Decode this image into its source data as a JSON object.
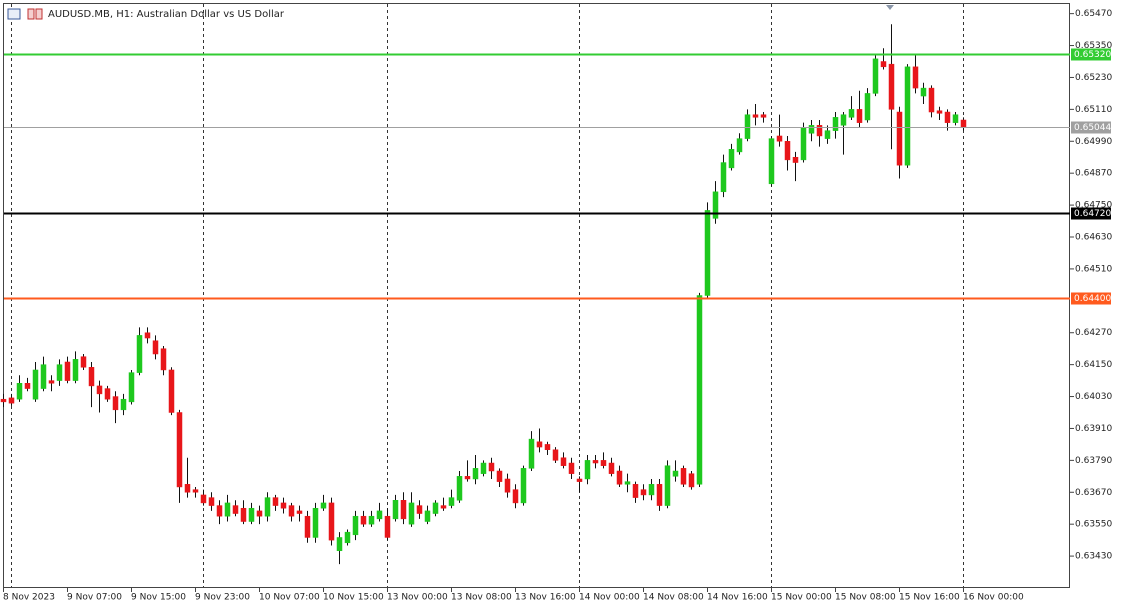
{
  "chart_data": {
    "type": "candlestick",
    "title": "AUDUSD.MB, H1:  Australian Dollar vs US Dollar",
    "up_color": "#1ec81e",
    "down_color": "#e8161a",
    "wick_color": "#111111",
    "categories": [
      "8 Nov 2023",
      null,
      null,
      null,
      null,
      null,
      null,
      null,
      "9 Nov 07:00",
      null,
      null,
      null,
      null,
      null,
      null,
      null,
      "9 Nov 15:00",
      null,
      null,
      null,
      null,
      null,
      null,
      null,
      "9 Nov 23:00",
      null,
      null,
      null,
      null,
      null,
      null,
      null,
      "10 Nov 07:00",
      null,
      null,
      null,
      null,
      null,
      null,
      null,
      "10 Nov 15:00",
      null,
      null,
      null,
      null,
      null,
      null,
      null,
      "13 Nov 00:00",
      null,
      null,
      null,
      null,
      null,
      null,
      null,
      "13 Nov 08:00",
      null,
      null,
      null,
      null,
      null,
      null,
      null,
      "13 Nov 16:00",
      null,
      null,
      null,
      null,
      null,
      null,
      null,
      "14 Nov 00:00",
      null,
      null,
      null,
      null,
      null,
      null,
      null,
      "14 Nov 08:00",
      null,
      null,
      null,
      null,
      null,
      null,
      null,
      "14 Nov 16:00",
      null,
      null,
      null,
      null,
      null,
      null,
      null,
      "15 Nov 00:00",
      null,
      null,
      null,
      null,
      null,
      null,
      null,
      "15 Nov 08:00",
      null,
      null,
      null,
      null,
      null,
      null,
      null,
      "15 Nov 16:00",
      null,
      null,
      null,
      null,
      null,
      null,
      null,
      "16 Nov 00:00"
    ],
    "open": [
      0.6402,
      0.64025,
      0.6402,
      0.6408,
      0.6402,
      0.6406,
      0.6409,
      0.6409,
      0.6416,
      0.6409,
      0.6418,
      0.6414,
      0.6407,
      0.6406,
      0.6403,
      0.6398,
      0.6401,
      0.6412,
      0.6427,
      0.6424,
      0.6421,
      0.6413,
      0.6397,
      0.637,
      0.6368,
      0.6366,
      0.6365,
      0.6362,
      0.6358,
      0.6362,
      0.6361,
      0.6356,
      0.636,
      0.6358,
      0.6365,
      0.6363,
      0.6362,
      0.636,
      0.6358,
      0.635,
      0.6361,
      0.6363,
      0.6345,
      0.6348,
      0.6351,
      0.6358,
      0.6355,
      0.6357,
      0.6358,
      0.6357,
      0.6364,
      0.6355,
      0.6362,
      0.6356,
      0.6359,
      0.6362,
      0.6362,
      0.6364,
      0.6373,
      0.6372,
      0.6374,
      0.6378,
      0.6375,
      0.6372,
      0.6368,
      0.6363,
      0.6376,
      0.6386,
      0.6385,
      0.6383,
      0.638,
      0.6378,
      0.6372,
      0.6372,
      0.6379,
      0.6379,
      0.6378,
      0.6375,
      0.637,
      0.637,
      0.6368,
      0.6366,
      0.637,
      0.6362,
      0.6373,
      0.6376,
      0.6374,
      0.637,
      0.6441,
      0.647,
      0.648,
      0.6489,
      0.6495,
      0.65,
      0.6509,
      0.6509,
      0.6483,
      0.6501,
      0.6499,
      0.6493,
      0.6492,
      0.6502,
      0.6505,
      0.65,
      0.6503,
      0.6505,
      0.6508,
      0.6511,
      0.6507,
      0.6517,
      0.6529,
      0.6528,
      0.651,
      0.649,
      0.6527,
      0.6516,
      0.6519,
      0.65105,
      0.651,
      0.6506,
      0.6507
    ],
    "high": [
      0.6404,
      0.6404,
      0.6411,
      0.641,
      0.6416,
      0.6418,
      0.6411,
      0.6417,
      0.6418,
      0.642,
      0.6419,
      0.6416,
      0.6409,
      0.6407,
      0.6405,
      0.6404,
      0.6413,
      0.6429,
      0.6429,
      0.6426,
      0.6422,
      0.6414,
      0.6398,
      0.638,
      0.6369,
      0.6368,
      0.6367,
      0.6364,
      0.6366,
      0.6364,
      0.6364,
      0.6363,
      0.6362,
      0.6367,
      0.6366,
      0.6365,
      0.6363,
      0.6362,
      0.636,
      0.6363,
      0.6366,
      0.6365,
      0.6352,
      0.6353,
      0.636,
      0.636,
      0.636,
      0.6363,
      0.6361,
      0.6366,
      0.6367,
      0.6367,
      0.6364,
      0.6362,
      0.6364,
      0.6365,
      0.6368,
      0.6375,
      0.6379,
      0.6381,
      0.6379,
      0.638,
      0.6376,
      0.6374,
      0.637,
      0.6377,
      0.639,
      0.6391,
      0.6386,
      0.6384,
      0.6382,
      0.638,
      0.6373,
      0.6381,
      0.6381,
      0.6382,
      0.638,
      0.6377,
      0.6374,
      0.6371,
      0.637,
      0.6372,
      0.6372,
      0.6379,
      0.6379,
      0.6377,
      0.6375,
      0.6442,
      0.6476,
      0.6484,
      0.6494,
      0.6498,
      0.6502,
      0.6511,
      0.6513,
      0.651,
      0.6501,
      0.6509,
      0.6501,
      0.6495,
      0.6506,
      0.6507,
      0.6507,
      0.6505,
      0.651,
      0.651,
      0.6516,
      0.6518,
      0.6519,
      0.6532,
      0.6534,
      0.6543,
      0.6512,
      0.6528,
      0.6532,
      0.6521,
      0.652,
      0.6512,
      0.6511,
      0.651,
      0.6508
    ],
    "low": [
      0.6399,
      0.63995,
      0.6401,
      0.6405,
      0.6401,
      0.6405,
      0.6405,
      0.6407,
      0.6408,
      0.6408,
      0.6413,
      0.6399,
      0.6397,
      0.6401,
      0.6393,
      0.6396,
      0.64,
      0.6411,
      0.6423,
      0.6417,
      0.6411,
      0.6396,
      0.6363,
      0.6365,
      0.6365,
      0.6362,
      0.636,
      0.6355,
      0.6356,
      0.6358,
      0.6355,
      0.6355,
      0.6355,
      0.6356,
      0.636,
      0.6359,
      0.6356,
      0.6356,
      0.6348,
      0.6348,
      0.636,
      0.6347,
      0.634,
      0.6347,
      0.6349,
      0.6354,
      0.6354,
      0.6356,
      0.6349,
      0.6356,
      0.6355,
      0.6354,
      0.6357,
      0.6355,
      0.6358,
      0.636,
      0.6361,
      0.6363,
      0.6371,
      0.637,
      0.6373,
      0.6372,
      0.6369,
      0.6365,
      0.6361,
      0.6362,
      0.6375,
      0.6382,
      0.6381,
      0.6378,
      0.6376,
      0.6372,
      0.6367,
      0.637,
      0.6376,
      0.6376,
      0.6373,
      0.6369,
      0.6367,
      0.6363,
      0.6364,
      0.6364,
      0.636,
      0.6361,
      0.6371,
      0.6369,
      0.6368,
      0.6369,
      0.644,
      0.6468,
      0.6478,
      0.6488,
      0.6494,
      0.6499,
      0.6505,
      0.6506,
      0.6482,
      0.6497,
      0.6488,
      0.6484,
      0.6491,
      0.6499,
      0.6497,
      0.6498,
      0.65,
      0.6494,
      0.6507,
      0.6504,
      0.6506,
      0.6516,
      0.6526,
      0.6496,
      0.6485,
      0.6489,
      0.6517,
      0.6513,
      0.6508,
      0.6507,
      0.6503,
      0.6505,
      0.6503
    ],
    "close": [
      0.6401,
      0.64005,
      0.6408,
      0.6406,
      0.6413,
      0.6415,
      0.6408,
      0.6415,
      0.6409,
      0.6417,
      0.6414,
      0.6407,
      0.6404,
      0.6402,
      0.6398,
      0.6402,
      0.6412,
      0.6426,
      0.6425,
      0.6419,
      0.6413,
      0.6397,
      0.6369,
      0.6367,
      0.6367,
      0.6363,
      0.6362,
      0.6358,
      0.6363,
      0.6359,
      0.6356,
      0.6361,
      0.6358,
      0.6365,
      0.6362,
      0.6361,
      0.6358,
      0.6359,
      0.635,
      0.6361,
      0.6363,
      0.6349,
      0.635,
      0.6352,
      0.6358,
      0.6355,
      0.6358,
      0.636,
      0.635,
      0.6364,
      0.6357,
      0.6363,
      0.6359,
      0.636,
      0.6363,
      0.6361,
      0.6365,
      0.6373,
      0.6372,
      0.6376,
      0.6378,
      0.6375,
      0.6371,
      0.6367,
      0.6363,
      0.6376,
      0.6387,
      0.6384,
      0.6383,
      0.6379,
      0.6377,
      0.6374,
      0.6371,
      0.6379,
      0.6378,
      0.6377,
      0.6374,
      0.637,
      0.6371,
      0.6365,
      0.6366,
      0.637,
      0.6362,
      0.6377,
      0.6375,
      0.637,
      0.6369,
      0.6441,
      0.6473,
      0.648,
      0.6491,
      0.6496,
      0.65,
      0.6509,
      0.6508,
      0.6508,
      0.65,
      0.6499,
      0.6492,
      0.6491,
      0.6504,
      0.6505,
      0.6501,
      0.6503,
      0.6508,
      0.6509,
      0.6511,
      0.6506,
      0.6517,
      0.653,
      0.6527,
      0.6511,
      0.649,
      0.6527,
      0.6519,
      0.6519,
      0.651,
      0.65095,
      0.6506,
      0.6509,
      0.65044
    ],
    "ylim": [
      0.6331,
      0.6551
    ],
    "yticks": [
      {
        "value": 0.6547,
        "label": "0.65470"
      },
      {
        "value": 0.6535,
        "label": "0.65350"
      },
      {
        "value": 0.6523,
        "label": "0.65230"
      },
      {
        "value": 0.6511,
        "label": "0.65110"
      },
      {
        "value": 0.6499,
        "label": "0.64990"
      },
      {
        "value": 0.6487,
        "label": "0.64870"
      },
      {
        "value": 0.6475,
        "label": "0.64750"
      },
      {
        "value": 0.6463,
        "label": "0.64630"
      },
      {
        "value": 0.6451,
        "label": "0.64510"
      },
      {
        "value": 0.6427,
        "label": "0.64270"
      },
      {
        "value": 0.6415,
        "label": "0.64150"
      },
      {
        "value": 0.6403,
        "label": "0.64030"
      },
      {
        "value": 0.6391,
        "label": "0.63910"
      },
      {
        "value": 0.6379,
        "label": "0.63790"
      },
      {
        "value": 0.6367,
        "label": "0.63670"
      },
      {
        "value": 0.6355,
        "label": "0.63550"
      },
      {
        "value": 0.6343,
        "label": "0.63430"
      }
    ],
    "levels": [
      {
        "value": 0.6532,
        "label": "0.65320",
        "color": "#33cc33",
        "width": 2
      },
      {
        "value": 0.65044,
        "label": "0.65044",
        "color": "#a0a0a0",
        "width": 1
      },
      {
        "value": 0.6472,
        "label": "0.64720",
        "color": "#000000",
        "width": 2
      },
      {
        "value": 0.644,
        "label": "0.64400",
        "color": "#ff5a1e",
        "width": 2
      }
    ],
    "grid": false
  }
}
